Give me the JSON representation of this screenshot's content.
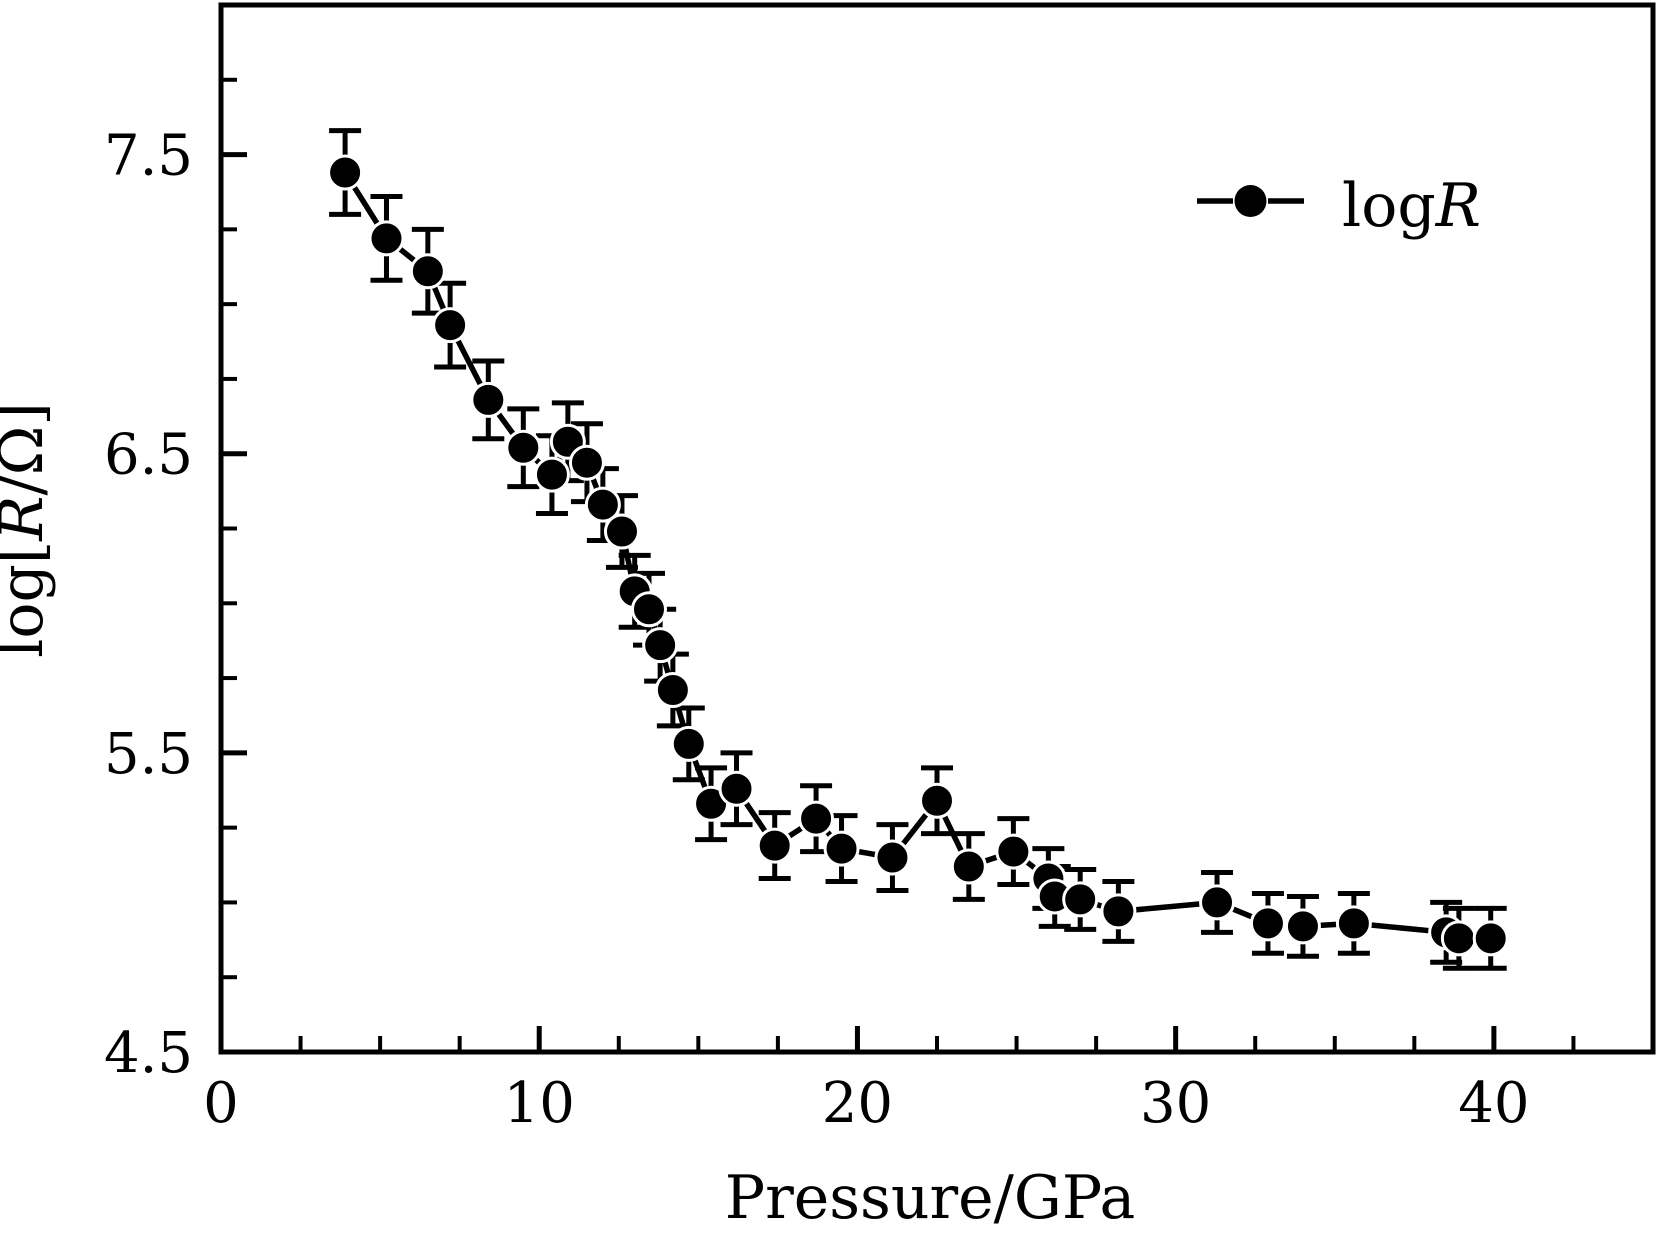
{
  "figure": {
    "background": "#ffffff",
    "ink_color": "#000000"
  },
  "chart_data": {
    "type": "scatter",
    "title": "",
    "xlabel": "Pressure/GPa",
    "ylabel": "log[R/Ω]",
    "ylabel_parts": [
      {
        "t": "log[",
        "i": false
      },
      {
        "t": "R",
        "i": true
      },
      {
        "t": "/Ω]",
        "i": false
      }
    ],
    "xlim": [
      0,
      45
    ],
    "ylim": [
      4.5,
      8.0
    ],
    "grid": false,
    "x_ticks": [
      {
        "v": 0,
        "label": "0"
      },
      {
        "v": 10,
        "label": "10"
      },
      {
        "v": 20,
        "label": "20"
      },
      {
        "v": 30,
        "label": "30"
      },
      {
        "v": 40,
        "label": "40"
      }
    ],
    "x_minor_ticks": [
      2.5,
      5,
      7.5,
      12.5,
      15,
      17.5,
      22.5,
      25,
      27.5,
      32.5,
      35,
      37.5,
      42.5
    ],
    "y_ticks": [
      {
        "v": 4.5,
        "label": "4.5"
      },
      {
        "v": 5.5,
        "label": "5.5"
      },
      {
        "v": 6.5,
        "label": "6.5"
      },
      {
        "v": 7.5,
        "label": "7.5"
      }
    ],
    "y_minor_ticks": [
      4.75,
      5.0,
      5.25,
      5.75,
      6.0,
      6.25,
      6.75,
      7.0,
      7.25,
      7.75
    ],
    "legend": {
      "position": "upper right",
      "entries": [
        {
          "label": "logR",
          "label_parts": [
            {
              "t": "log",
              "i": false
            },
            {
              "t": "R",
              "i": true
            }
          ],
          "marker": "filled-circle",
          "line_style": "dashed"
        }
      ]
    },
    "series": [
      {
        "name": "logR",
        "marker": "filled-circle",
        "color": "#000000",
        "x": [
          3.9,
          5.2,
          6.5,
          7.2,
          8.4,
          9.5,
          10.4,
          10.9,
          11.5,
          12.0,
          12.6,
          13.0,
          13.45,
          13.8,
          14.2,
          14.7,
          15.4,
          16.2,
          17.4,
          18.7,
          19.5,
          21.1,
          22.5,
          23.5,
          24.9,
          26.0,
          26.2,
          27.0,
          28.2,
          31.3,
          32.9,
          34.0,
          35.6,
          38.5,
          38.9,
          39.9
        ],
        "y": [
          7.44,
          7.22,
          7.11,
          6.93,
          6.68,
          6.52,
          6.43,
          6.54,
          6.47,
          6.33,
          6.24,
          6.04,
          5.98,
          5.86,
          5.71,
          5.53,
          5.33,
          5.38,
          5.19,
          5.28,
          5.18,
          5.15,
          5.34,
          5.12,
          5.17,
          5.08,
          5.02,
          5.01,
          4.97,
          5.0,
          4.93,
          4.92,
          4.93,
          4.9,
          4.88,
          4.88
        ],
        "yerr": [
          0.14,
          0.14,
          0.14,
          0.14,
          0.13,
          0.13,
          0.13,
          0.13,
          0.13,
          0.12,
          0.12,
          0.12,
          0.12,
          0.12,
          0.12,
          0.12,
          0.12,
          0.12,
          0.11,
          0.11,
          0.11,
          0.11,
          0.11,
          0.11,
          0.11,
          0.1,
          0.1,
          0.1,
          0.1,
          0.1,
          0.1,
          0.1,
          0.1,
          0.1,
          0.1,
          0.1
        ]
      }
    ]
  }
}
